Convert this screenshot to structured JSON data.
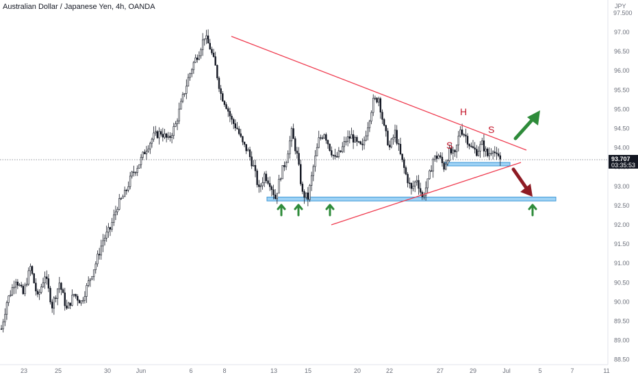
{
  "header": {
    "title": "Australian Dollar / Japanese Yen, 4h, OANDA"
  },
  "axis": {
    "currency": "JPY",
    "top_label": "97.500"
  },
  "price_badge": {
    "price": "93.707",
    "countdown": "03:35:53"
  },
  "annotations": {
    "left_shoulder": "S",
    "head": "H",
    "right_shoulder": "S"
  },
  "colors": {
    "up": "#131722",
    "down": "#131722",
    "trendline": "#ef3b4f",
    "support_zone": "#7ec3f2",
    "support_edge": "#3d97d6",
    "bull_arrow": "#2e8b3a",
    "bear_arrow": "#8e1b24",
    "annotation": "#c4162a",
    "badge": "#131722"
  },
  "chart_data": {
    "type": "candlestick",
    "title": "Australian Dollar / Japanese Yen, 4h, OANDA",
    "ylim": [
      88.5,
      97.5
    ],
    "y_ticks": [
      88.5,
      89.0,
      89.5,
      90.0,
      90.5,
      91.0,
      91.5,
      92.0,
      92.5,
      93.0,
      93.5,
      94.0,
      94.5,
      95.0,
      95.5,
      96.0,
      96.5,
      97.0
    ],
    "x_ticks": [
      "23",
      "25",
      "30",
      "Jun",
      "6",
      "8",
      "13",
      "15",
      "20",
      "22",
      "27",
      "29",
      "Jul",
      "5",
      "7",
      "11"
    ],
    "last_price": 93.707,
    "anchors": [
      [
        0,
        89.3
      ],
      [
        3,
        90.0
      ],
      [
        8,
        90.6
      ],
      [
        12,
        90.2
      ],
      [
        16,
        90.9
      ],
      [
        20,
        90.1
      ],
      [
        24,
        90.7
      ],
      [
        28,
        89.9
      ],
      [
        32,
        90.5
      ],
      [
        36,
        89.8
      ],
      [
        40,
        90.2
      ],
      [
        44,
        90.0
      ],
      [
        48,
        90.5
      ],
      [
        52,
        91.0
      ],
      [
        56,
        91.6
      ],
      [
        60,
        91.9
      ],
      [
        64,
        92.5
      ],
      [
        68,
        92.8
      ],
      [
        72,
        93.3
      ],
      [
        76,
        93.6
      ],
      [
        80,
        94.0
      ],
      [
        84,
        94.3
      ],
      [
        88,
        94.4
      ],
      [
        92,
        94.2
      ],
      [
        96,
        94.6
      ],
      [
        100,
        95.3
      ],
      [
        103,
        95.8
      ],
      [
        106,
        96.2
      ],
      [
        109,
        96.5
      ],
      [
        112,
        96.9
      ],
      [
        115,
        96.6
      ],
      [
        118,
        96.1
      ],
      [
        121,
        95.4
      ],
      [
        124,
        95.1
      ],
      [
        127,
        94.7
      ],
      [
        130,
        94.5
      ],
      [
        133,
        94.1
      ],
      [
        136,
        93.9
      ],
      [
        139,
        93.5
      ],
      [
        142,
        92.9
      ],
      [
        145,
        93.3
      ],
      [
        148,
        93.1
      ],
      [
        151,
        92.7
      ],
      [
        154,
        93.3
      ],
      [
        157,
        93.7
      ],
      [
        160,
        94.4
      ],
      [
        163,
        93.8
      ],
      [
        166,
        92.8
      ],
      [
        169,
        92.7
      ],
      [
        172,
        93.5
      ],
      [
        175,
        94.2
      ],
      [
        178,
        94.4
      ],
      [
        181,
        94.0
      ],
      [
        184,
        93.7
      ],
      [
        187,
        93.9
      ],
      [
        190,
        94.2
      ],
      [
        193,
        94.3
      ],
      [
        196,
        94.1
      ],
      [
        199,
        94.0
      ],
      [
        202,
        94.6
      ],
      [
        205,
        95.2
      ],
      [
        208,
        95.3
      ],
      [
        211,
        94.5
      ],
      [
        214,
        94.0
      ],
      [
        217,
        94.4
      ],
      [
        220,
        93.8
      ],
      [
        223,
        93.3
      ],
      [
        226,
        92.9
      ],
      [
        229,
        93.2
      ],
      [
        232,
        92.7
      ],
      [
        235,
        93.1
      ],
      [
        238,
        93.7
      ],
      [
        241,
        93.8
      ],
      [
        244,
        93.5
      ],
      [
        247,
        93.9
      ],
      [
        250,
        93.8
      ],
      [
        253,
        94.5
      ],
      [
        256,
        94.3
      ],
      [
        259,
        94.0
      ],
      [
        262,
        93.9
      ],
      [
        265,
        94.1
      ],
      [
        268,
        93.8
      ],
      [
        271,
        94.0
      ],
      [
        273,
        93.75
      ],
      [
        275,
        93.707
      ]
    ],
    "support_zones": [
      {
        "y_from": 92.62,
        "y_to": 92.72
      },
      {
        "y_from": 93.53,
        "y_to": 93.62
      }
    ],
    "trendlines": [
      {
        "from": [
          8,
          96.9
        ],
        "to": [
          15.6,
          93.98
        ]
      },
      {
        "from": [
          8,
          96.9
        ],
        "to": [
          15.6,
          93.98
        ]
      }
    ]
  }
}
